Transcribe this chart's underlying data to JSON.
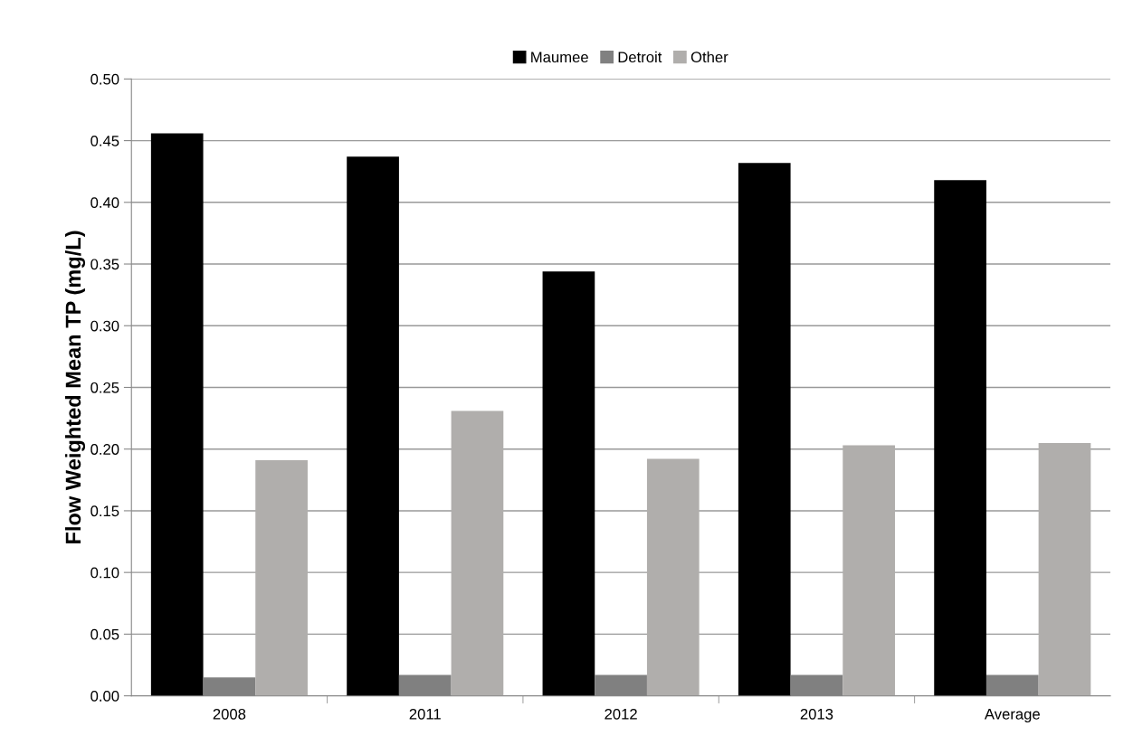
{
  "chart_data": {
    "type": "bar",
    "ylabel": "Flow Weighted Mean TP (mg/L)",
    "categories": [
      "2008",
      "2011",
      "2012",
      "2013",
      "Average"
    ],
    "series": [
      {
        "name": "Maumee",
        "color": "#000000",
        "values": [
          0.456,
          0.437,
          0.344,
          0.432,
          0.418
        ]
      },
      {
        "name": "Detroit",
        "color": "#808080",
        "values": [
          0.015,
          0.017,
          0.017,
          0.017,
          0.017
        ]
      },
      {
        "name": "Other",
        "color": "#b0aeac",
        "values": [
          0.191,
          0.231,
          0.192,
          0.203,
          0.205
        ]
      }
    ],
    "ylim": [
      0,
      0.5
    ],
    "yticks": [
      {
        "value": 0,
        "label": "0.00"
      },
      {
        "value": 0.05,
        "label": "0.05"
      },
      {
        "value": 0.1,
        "label": "0.10"
      },
      {
        "value": 0.15,
        "label": "0.15"
      },
      {
        "value": 0.2,
        "label": "0.20"
      },
      {
        "value": 0.25,
        "label": "0.25"
      },
      {
        "value": 0.3,
        "label": "0.30"
      },
      {
        "value": 0.35,
        "label": "0.35"
      },
      {
        "value": 0.4,
        "label": "0.40"
      },
      {
        "value": 0.45,
        "label": "0.45"
      },
      {
        "value": 0.5,
        "label": "0.50"
      }
    ],
    "grid": "y",
    "legend": "top"
  }
}
